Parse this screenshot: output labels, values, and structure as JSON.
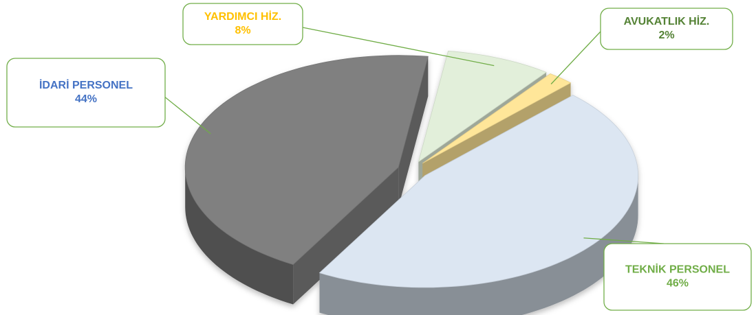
{
  "chart_data": {
    "type": "pie3d",
    "categories": [
      "YARDIMCI HİZ.",
      "AVUKATLIK HİZ.",
      "TEKNİK PERSONEL",
      "İDARİ PERSONEL"
    ],
    "values": [
      8,
      2,
      46,
      44
    ],
    "value_labels": [
      "8%",
      "2%",
      "46%",
      "44%"
    ],
    "colors": [
      "#e2efda",
      "#ffe699",
      "#dce6f2",
      "#808080"
    ],
    "label_colors": [
      "#ffc000",
      "#548235",
      "#70ad47",
      "#4472c4"
    ]
  }
}
